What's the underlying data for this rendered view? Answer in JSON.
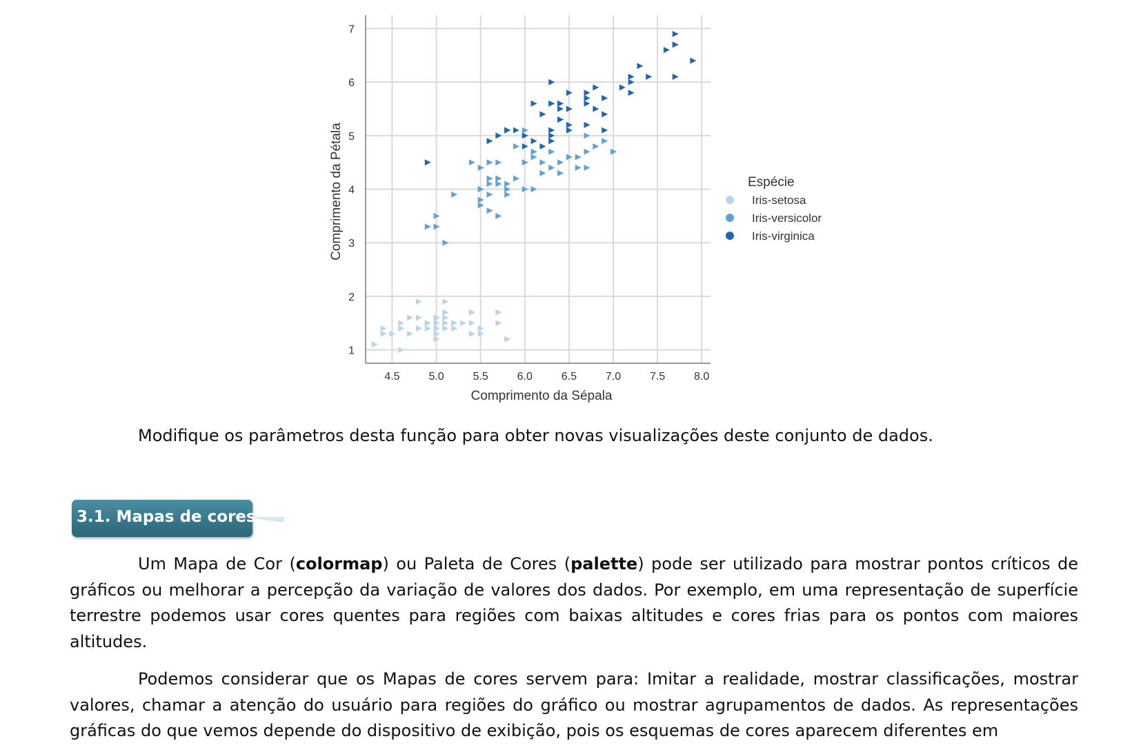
{
  "chart_data": {
    "type": "scatter",
    "xlabel": "Comprimento da Sépala",
    "ylabel": "Comprimento da Pétala",
    "xlim": [
      4.2,
      8.1
    ],
    "ylim": [
      0.75,
      7.25
    ],
    "x_ticks": [
      "4.5",
      "5.0",
      "5.5",
      "6.0",
      "6.5",
      "7.0",
      "7.5",
      "8.0"
    ],
    "y_ticks": [
      "1",
      "2",
      "3",
      "4",
      "5",
      "6",
      "7"
    ],
    "grid": true,
    "marker": "triangle-right",
    "legend": {
      "title": "Espécie",
      "placement": "right",
      "entries": [
        "Iris-setosa",
        "Iris-versicolor",
        "Iris-virginica"
      ]
    },
    "colors": {
      "Iris-setosa": "#b9d4ee",
      "Iris-versicolor": "#5ea2d6",
      "Iris-virginica": "#1f67b1"
    },
    "series": [
      {
        "name": "Iris-setosa",
        "points": [
          [
            5.1,
            1.4
          ],
          [
            4.9,
            1.4
          ],
          [
            4.7,
            1.3
          ],
          [
            4.6,
            1.5
          ],
          [
            5.0,
            1.4
          ],
          [
            5.4,
            1.7
          ],
          [
            4.6,
            1.4
          ],
          [
            5.0,
            1.5
          ],
          [
            4.4,
            1.4
          ],
          [
            4.9,
            1.5
          ],
          [
            5.4,
            1.5
          ],
          [
            4.8,
            1.6
          ],
          [
            4.8,
            1.4
          ],
          [
            4.3,
            1.1
          ],
          [
            5.8,
            1.2
          ],
          [
            5.7,
            1.5
          ],
          [
            5.4,
            1.3
          ],
          [
            5.1,
            1.4
          ],
          [
            5.7,
            1.7
          ],
          [
            5.1,
            1.5
          ],
          [
            5.4,
            1.7
          ],
          [
            5.1,
            1.5
          ],
          [
            4.6,
            1.0
          ],
          [
            5.1,
            1.7
          ],
          [
            4.8,
            1.9
          ],
          [
            5.0,
            1.6
          ],
          [
            5.0,
            1.6
          ],
          [
            5.2,
            1.5
          ],
          [
            5.2,
            1.4
          ],
          [
            4.7,
            1.6
          ],
          [
            4.8,
            1.6
          ],
          [
            5.4,
            1.5
          ],
          [
            5.2,
            1.5
          ],
          [
            5.5,
            1.4
          ],
          [
            4.9,
            1.5
          ],
          [
            5.0,
            1.2
          ],
          [
            5.5,
            1.3
          ],
          [
            4.9,
            1.5
          ],
          [
            4.4,
            1.3
          ],
          [
            5.1,
            1.5
          ],
          [
            5.0,
            1.3
          ],
          [
            4.5,
            1.3
          ],
          [
            4.4,
            1.3
          ],
          [
            5.0,
            1.6
          ],
          [
            5.1,
            1.9
          ],
          [
            4.8,
            1.4
          ],
          [
            5.1,
            1.6
          ],
          [
            4.6,
            1.4
          ],
          [
            5.3,
            1.5
          ],
          [
            5.0,
            1.4
          ]
        ]
      },
      {
        "name": "Iris-versicolor",
        "points": [
          [
            7.0,
            4.7
          ],
          [
            6.4,
            4.5
          ],
          [
            6.9,
            4.9
          ],
          [
            5.5,
            4.0
          ],
          [
            6.5,
            4.6
          ],
          [
            5.7,
            4.5
          ],
          [
            6.3,
            4.7
          ],
          [
            4.9,
            3.3
          ],
          [
            6.6,
            4.6
          ],
          [
            5.2,
            3.9
          ],
          [
            5.0,
            3.5
          ],
          [
            5.9,
            4.2
          ],
          [
            6.0,
            4.0
          ],
          [
            6.1,
            4.7
          ],
          [
            5.6,
            3.6
          ],
          [
            6.7,
            4.4
          ],
          [
            5.6,
            4.5
          ],
          [
            5.8,
            4.1
          ],
          [
            6.2,
            4.5
          ],
          [
            5.6,
            3.9
          ],
          [
            5.9,
            4.8
          ],
          [
            6.1,
            4.0
          ],
          [
            6.3,
            4.9
          ],
          [
            6.1,
            4.7
          ],
          [
            6.4,
            4.3
          ],
          [
            6.6,
            4.4
          ],
          [
            6.8,
            4.8
          ],
          [
            6.7,
            5.0
          ],
          [
            6.0,
            4.5
          ],
          [
            5.7,
            3.5
          ],
          [
            5.5,
            3.8
          ],
          [
            5.5,
            3.7
          ],
          [
            5.8,
            3.9
          ],
          [
            6.0,
            5.1
          ],
          [
            5.4,
            4.5
          ],
          [
            6.0,
            4.5
          ],
          [
            6.7,
            4.7
          ],
          [
            6.3,
            4.4
          ],
          [
            5.6,
            4.1
          ],
          [
            5.5,
            4.0
          ],
          [
            5.5,
            4.4
          ],
          [
            6.1,
            4.6
          ],
          [
            5.8,
            4.0
          ],
          [
            5.0,
            3.3
          ],
          [
            5.6,
            4.2
          ],
          [
            5.7,
            4.2
          ],
          [
            5.7,
            4.2
          ],
          [
            6.2,
            4.3
          ],
          [
            5.1,
            3.0
          ],
          [
            5.7,
            4.1
          ]
        ]
      },
      {
        "name": "Iris-virginica",
        "points": [
          [
            6.3,
            6.0
          ],
          [
            5.8,
            5.1
          ],
          [
            7.1,
            5.9
          ],
          [
            6.3,
            5.6
          ],
          [
            6.5,
            5.8
          ],
          [
            7.6,
            6.6
          ],
          [
            4.9,
            4.5
          ],
          [
            7.3,
            6.3
          ],
          [
            6.7,
            5.8
          ],
          [
            7.2,
            6.1
          ],
          [
            6.5,
            5.1
          ],
          [
            6.4,
            5.3
          ],
          [
            6.8,
            5.5
          ],
          [
            5.7,
            5.0
          ],
          [
            5.8,
            5.1
          ],
          [
            6.4,
            5.3
          ],
          [
            6.5,
            5.5
          ],
          [
            7.7,
            6.7
          ],
          [
            7.7,
            6.9
          ],
          [
            6.0,
            5.0
          ],
          [
            6.9,
            5.7
          ],
          [
            5.6,
            4.9
          ],
          [
            7.7,
            6.7
          ],
          [
            6.3,
            4.9
          ],
          [
            6.7,
            5.7
          ],
          [
            7.2,
            6.0
          ],
          [
            6.2,
            4.8
          ],
          [
            6.1,
            4.9
          ],
          [
            6.4,
            5.6
          ],
          [
            7.2,
            5.8
          ],
          [
            7.4,
            6.1
          ],
          [
            7.9,
            6.4
          ],
          [
            6.4,
            5.6
          ],
          [
            6.3,
            5.1
          ],
          [
            6.1,
            5.6
          ],
          [
            7.7,
            6.1
          ],
          [
            6.3,
            5.6
          ],
          [
            6.4,
            5.5
          ],
          [
            6.0,
            4.8
          ],
          [
            6.9,
            5.4
          ],
          [
            6.7,
            5.6
          ],
          [
            6.9,
            5.1
          ],
          [
            5.8,
            5.1
          ],
          [
            6.8,
            5.9
          ],
          [
            6.7,
            5.7
          ],
          [
            6.7,
            5.2
          ],
          [
            6.3,
            5.0
          ],
          [
            6.5,
            5.2
          ],
          [
            6.2,
            5.4
          ],
          [
            5.9,
            5.1
          ]
        ]
      }
    ]
  },
  "caption": "Modifique os parâmetros desta função para obter novas visualizações deste conjunto de dados.",
  "section": {
    "title": "3.1. Mapas de cores"
  },
  "paragraph1": {
    "t1": "Um Mapa de Cor (",
    "b1": "colormap",
    "t2": ") ou Paleta de Cores (",
    "b2": "palette",
    "t3": ") pode ser utilizado para mostrar pontos críticos de gráficos ou melhorar a percepção da variação de valores dos dados. Por exemplo, em uma representação de superfície terrestre podemos usar cores quentes para regiões com baixas altitudes e cores frias para os pontos com maiores altitudes."
  },
  "paragraph2": "Podemos considerar que os Mapas de cores servem para: Imitar a realidade, mostrar classificações, mostrar valores, chamar a atenção do usuário para regiões do gráfico ou mostrar agrupamentos de dados. As representações gráficas do que vemos depende do dispositivo de exibição, pois os esquemas de cores aparecem diferentes em"
}
